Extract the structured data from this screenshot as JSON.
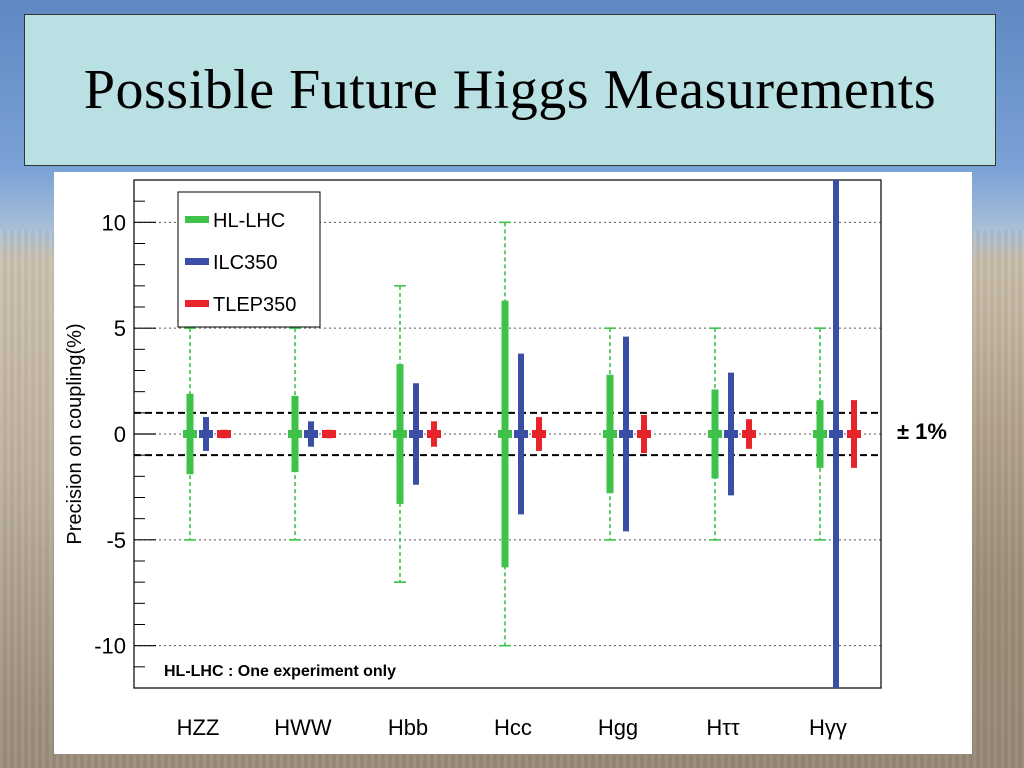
{
  "slide": {
    "title": "Possible Future Higgs Measurements"
  },
  "chart_data": {
    "type": "error-bar",
    "ylabel": "Precision on coupling(%)",
    "ylim": [
      -12,
      12
    ],
    "yticks": [
      10,
      5,
      0,
      -5,
      -10
    ],
    "categories": [
      "HZZ",
      "HWW",
      "Hbb",
      "Hcc",
      "Hgg",
      "Hττ",
      "Hγγ"
    ],
    "series": [
      {
        "name": "HL-LHC",
        "color": "#3ec24a",
        "values": [
          1.9,
          1.8,
          3.3,
          6.3,
          2.8,
          2.1,
          1.6
        ],
        "outer": [
          5,
          5,
          7,
          10,
          5,
          5,
          5
        ]
      },
      {
        "name": "ILC350",
        "color": "#3a4ea6",
        "values": [
          0.8,
          0.6,
          2.4,
          3.8,
          4.6,
          2.9,
          12
        ]
      },
      {
        "name": "TLEP350",
        "color": "#e8232a",
        "values": [
          0.2,
          0.2,
          0.6,
          0.8,
          0.9,
          0.7,
          1.6
        ]
      }
    ],
    "reference_lines": [
      1,
      -1
    ],
    "reference_label": "± 1%",
    "annotation": "HL-LHC : One experiment only",
    "grid": "dotted",
    "legend_position": "top-left"
  }
}
